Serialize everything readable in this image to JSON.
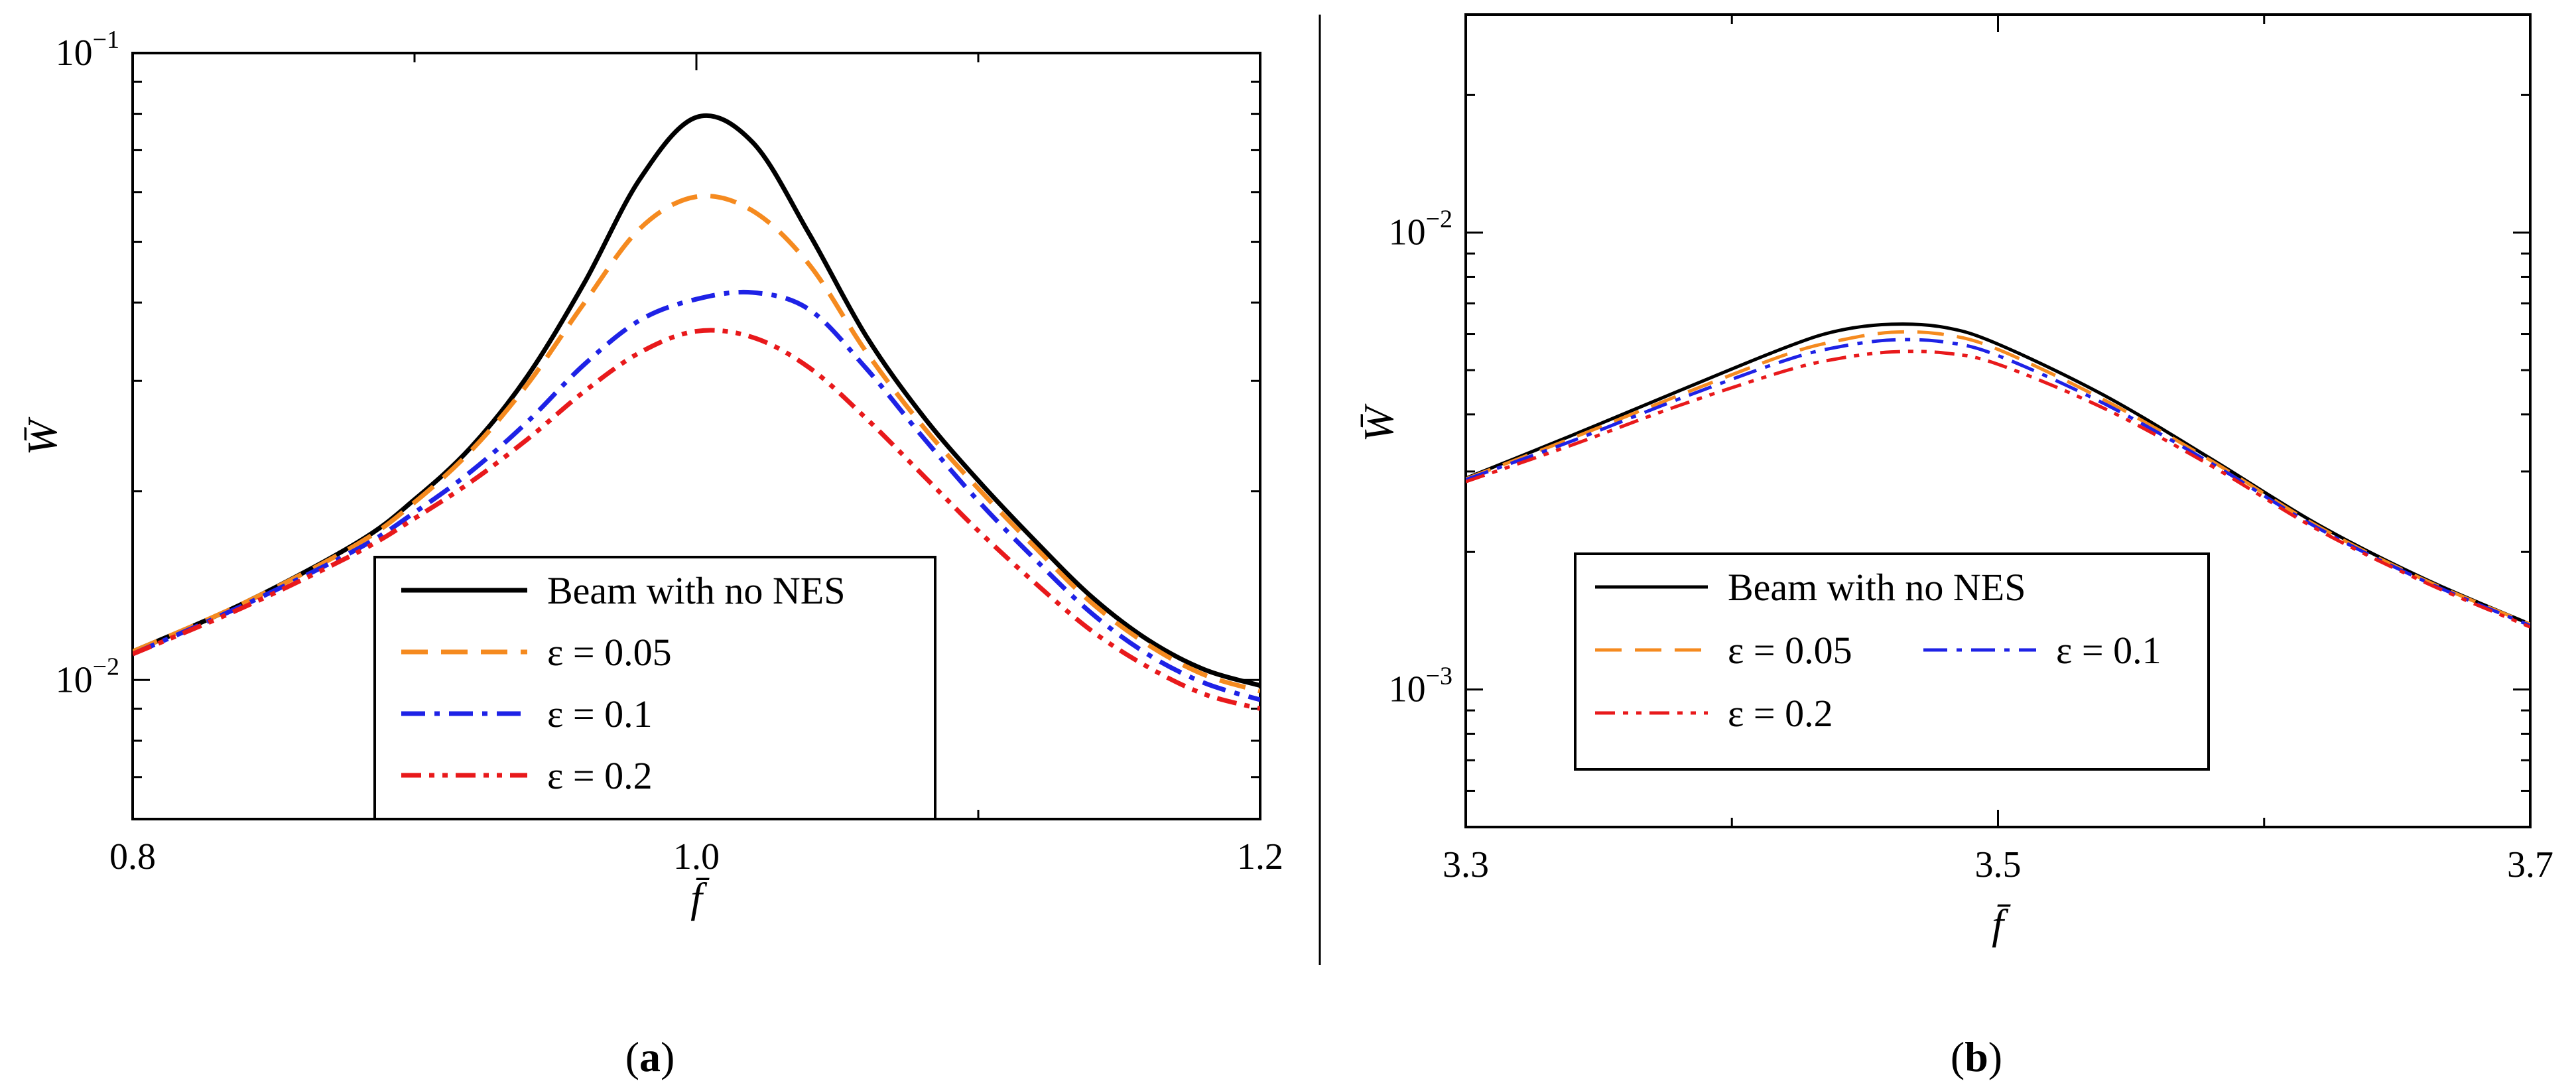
{
  "chart_data": [
    {
      "type": "line",
      "panel_label": "(a)",
      "panel_letter": "a",
      "xlabel": "f̄",
      "ylabel": "W̄",
      "xlim": [
        0.8,
        1.2
      ],
      "ylim": [
        0.006,
        0.1
      ],
      "yscale": "log",
      "xticks": [
        0.8,
        1.0,
        1.2
      ],
      "xtick_labels": [
        "0.8",
        "1.0",
        "1.2"
      ],
      "ytick_labels": [
        {
          "value": 0.1,
          "base": "10",
          "exp": "−1"
        },
        {
          "value": 0.01,
          "base": "10",
          "exp": "−2"
        }
      ],
      "legend": {
        "position": "bottom-center",
        "layout": "single-column"
      },
      "series": [
        {
          "name": "Beam with no NES",
          "color": "#000000",
          "dash": "solid",
          "x": [
            0.8,
            0.84,
            0.88,
            0.9,
            0.92,
            0.94,
            0.96,
            0.98,
            1.0,
            1.02,
            1.04,
            1.06,
            1.08,
            1.1,
            1.12,
            1.14,
            1.16,
            1.18,
            1.2
          ],
          "y": [
            0.0111,
            0.0133,
            0.0166,
            0.0194,
            0.0235,
            0.0305,
            0.0428,
            0.063,
            0.079,
            0.072,
            0.0515,
            0.0355,
            0.0265,
            0.0208,
            0.0167,
            0.0136,
            0.0116,
            0.0104,
            0.0098
          ]
        },
        {
          "name": "ε = 0.05",
          "color": "#F58A1F",
          "dash": "dash",
          "x": [
            0.8,
            0.84,
            0.88,
            0.9,
            0.92,
            0.94,
            0.96,
            0.98,
            1.0,
            1.02,
            1.04,
            1.06,
            1.08,
            1.1,
            1.12,
            1.14,
            1.16,
            1.18,
            1.2
          ],
          "y": [
            0.0111,
            0.0133,
            0.0165,
            0.0192,
            0.0232,
            0.0296,
            0.0398,
            0.0525,
            0.059,
            0.056,
            0.046,
            0.0335,
            0.0255,
            0.0202,
            0.0163,
            0.0133,
            0.0114,
            0.0102,
            0.0096
          ]
        },
        {
          "name": "ε = 0.1",
          "color": "#1E22E6",
          "dash": "dashdot",
          "x": [
            0.8,
            0.84,
            0.88,
            0.9,
            0.92,
            0.94,
            0.96,
            0.98,
            1.0,
            1.02,
            1.04,
            1.06,
            1.08,
            1.1,
            1.12,
            1.14,
            1.16,
            1.18,
            1.2
          ],
          "y": [
            0.011,
            0.0132,
            0.0162,
            0.0185,
            0.0215,
            0.0258,
            0.0318,
            0.0375,
            0.0405,
            0.0415,
            0.039,
            0.0315,
            0.0245,
            0.0193,
            0.0156,
            0.0128,
            0.011,
            0.0099,
            0.0093
          ]
        },
        {
          "name": "ε = 0.2",
          "color": "#E8191B",
          "dash": "dashdotdot",
          "x": [
            0.8,
            0.84,
            0.88,
            0.9,
            0.92,
            0.94,
            0.96,
            0.98,
            1.0,
            1.02,
            1.04,
            1.06,
            1.08,
            1.1,
            1.12,
            1.14,
            1.16,
            1.18,
            1.2
          ],
          "y": [
            0.011,
            0.0131,
            0.016,
            0.0181,
            0.0207,
            0.0242,
            0.0288,
            0.0333,
            0.036,
            0.0352,
            0.0315,
            0.0262,
            0.0213,
            0.0173,
            0.0143,
            0.012,
            0.0105,
            0.0095,
            0.009
          ]
        }
      ]
    },
    {
      "type": "line",
      "panel_label": "(b)",
      "panel_letter": "b",
      "xlabel": "f̄",
      "ylabel": "W̄",
      "xlim": [
        3.3,
        3.7
      ],
      "ylim": [
        0.0005,
        0.03
      ],
      "yscale": "log",
      "xticks": [
        3.3,
        3.5,
        3.7
      ],
      "xtick_labels": [
        "3.3",
        "3.5",
        "3.7"
      ],
      "ytick_labels": [
        {
          "value": 0.01,
          "base": "10",
          "exp": "−2"
        },
        {
          "value": 0.001,
          "base": "10",
          "exp": "−3"
        }
      ],
      "legend": {
        "position": "bottom-left",
        "layout": "two-column"
      },
      "series": [
        {
          "name": "Beam with no NES",
          "color": "#000000",
          "dash": "solid",
          "x": [
            3.3,
            3.34,
            3.38,
            3.42,
            3.44,
            3.46,
            3.48,
            3.5,
            3.54,
            3.58,
            3.62,
            3.66,
            3.7
          ],
          "y": [
            0.0029,
            0.0036,
            0.0045,
            0.0056,
            0.0061,
            0.0063,
            0.0062,
            0.0057,
            0.0044,
            0.0032,
            0.0023,
            0.00175,
            0.00139
          ]
        },
        {
          "name": "ε = 0.05",
          "color": "#F58A1F",
          "dash": "dash",
          "x": [
            3.3,
            3.34,
            3.38,
            3.42,
            3.44,
            3.46,
            3.48,
            3.5,
            3.54,
            3.58,
            3.62,
            3.66,
            3.7
          ],
          "y": [
            0.00289,
            0.00355,
            0.0044,
            0.0054,
            0.0058,
            0.00605,
            0.00598,
            0.00555,
            0.0043,
            0.00317,
            0.00228,
            0.00174,
            0.00139
          ]
        },
        {
          "name": "ε = 0.1",
          "color": "#1E22E6",
          "dash": "dashdot",
          "x": [
            3.3,
            3.34,
            3.38,
            3.42,
            3.44,
            3.46,
            3.48,
            3.5,
            3.54,
            3.58,
            3.62,
            3.66,
            3.7
          ],
          "y": [
            0.00288,
            0.0035,
            0.00432,
            0.00525,
            0.00562,
            0.00582,
            0.00576,
            0.00538,
            0.00422,
            0.00313,
            0.00226,
            0.00173,
            0.00138
          ]
        },
        {
          "name": "ε = 0.2",
          "color": "#E8191B",
          "dash": "dashdotdot",
          "x": [
            3.3,
            3.34,
            3.38,
            3.42,
            3.44,
            3.46,
            3.48,
            3.5,
            3.54,
            3.58,
            3.62,
            3.66,
            3.7
          ],
          "y": [
            0.00285,
            0.00343,
            0.00418,
            0.00498,
            0.0053,
            0.00548,
            0.00545,
            0.00515,
            0.00412,
            0.00309,
            0.00224,
            0.00172,
            0.00137
          ]
        }
      ]
    }
  ]
}
